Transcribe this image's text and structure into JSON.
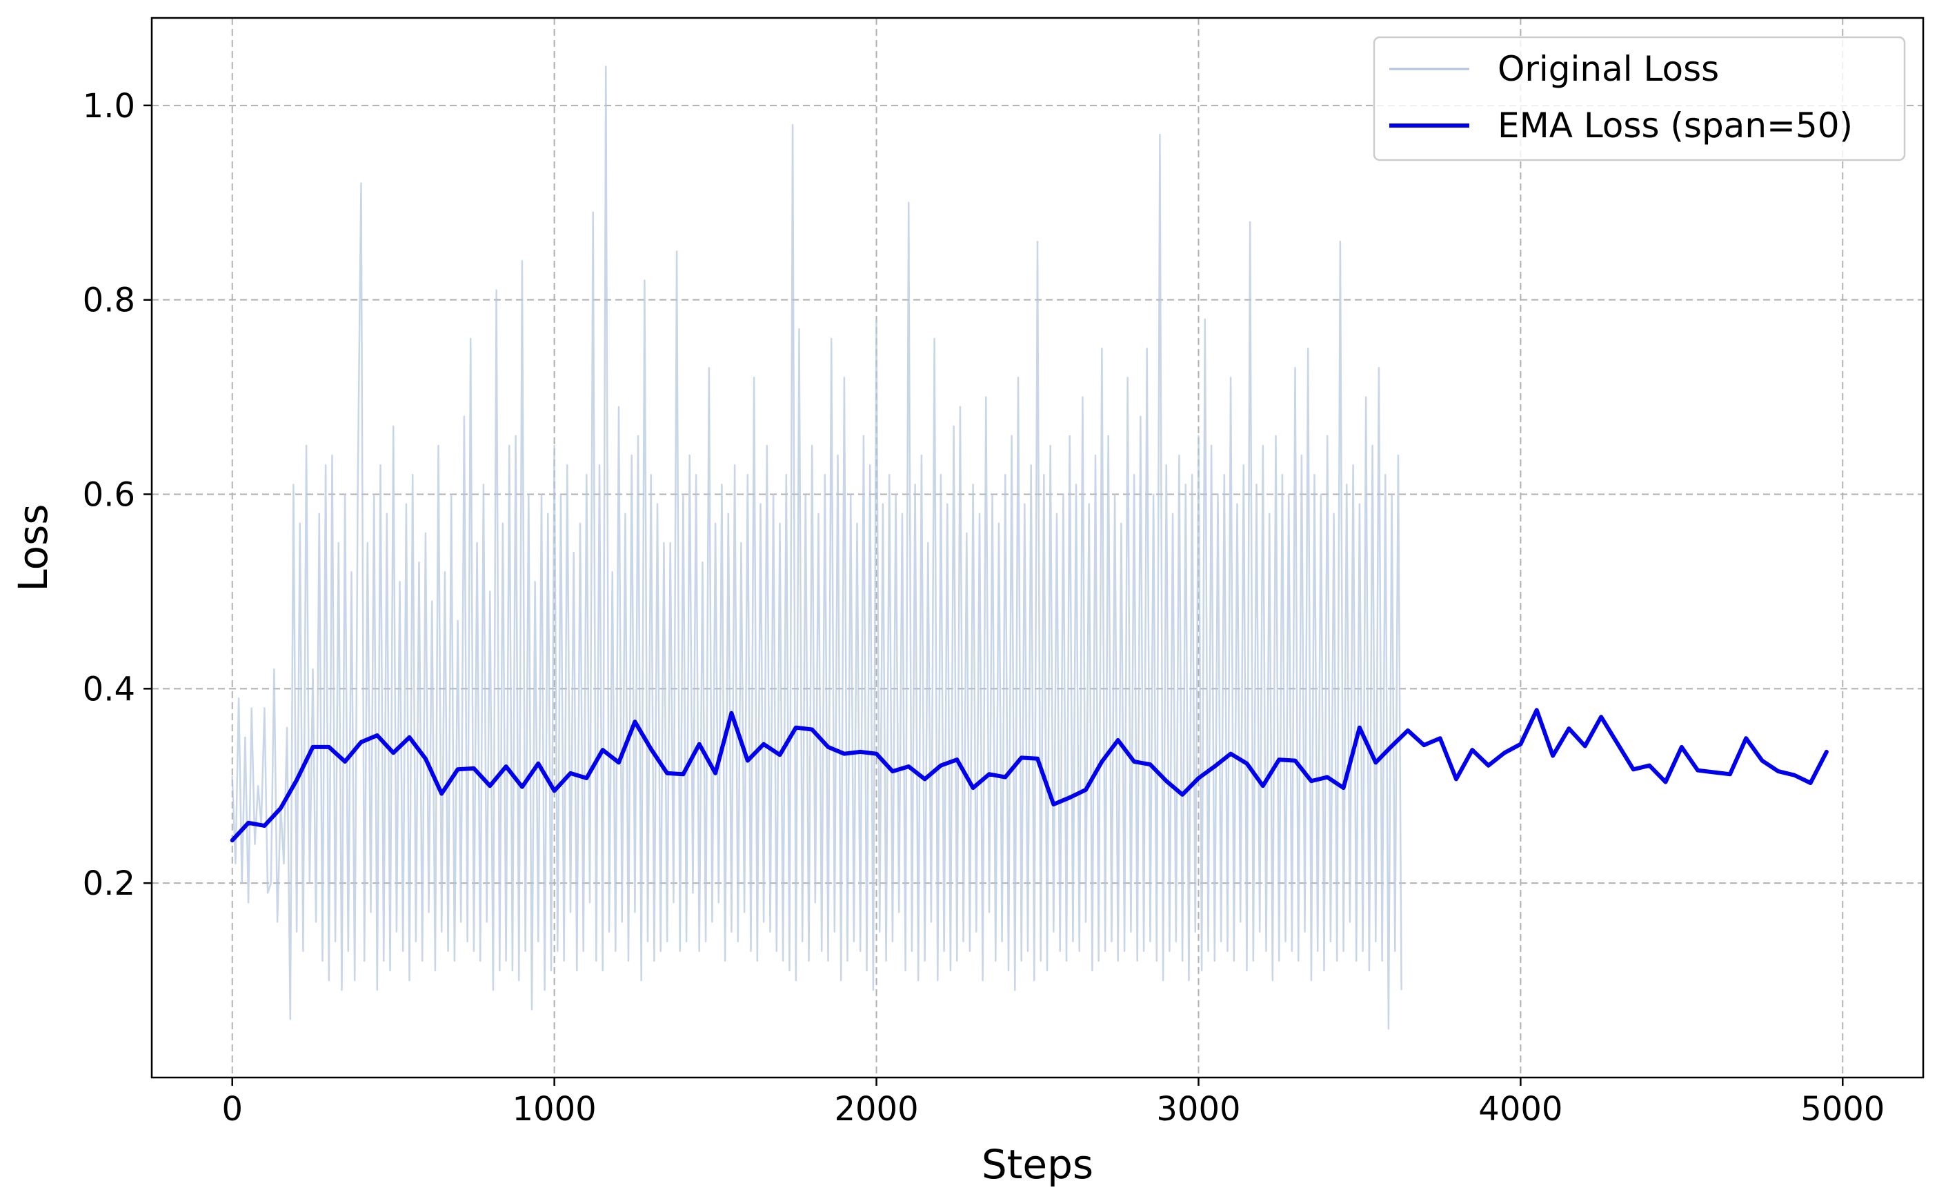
{
  "chart_data": {
    "type": "line",
    "title": "",
    "xlabel": "Steps",
    "ylabel": "Loss",
    "xlim": [
      -250,
      5250
    ],
    "ylim": [
      0.0,
      1.09
    ],
    "x_ticks": [
      0,
      1000,
      2000,
      3000,
      4000,
      5000
    ],
    "x_tick_labels": [
      "0",
      "1000",
      "2000",
      "3000",
      "4000",
      "5000"
    ],
    "y_ticks": [
      0.2,
      0.4,
      0.6,
      0.8,
      1.0
    ],
    "y_tick_labels": [
      "0.2",
      "0.4",
      "0.6",
      "0.8",
      "1.0"
    ],
    "grid": true,
    "legend_position": "top-right",
    "series": [
      {
        "name": "Original Loss",
        "color": "#b0c4de",
        "style": "thin-line",
        "x_start": 0,
        "x_step": 10,
        "values": [
          0.31,
          0.22,
          0.39,
          0.2,
          0.35,
          0.18,
          0.38,
          0.24,
          0.3,
          0.26,
          0.38,
          0.19,
          0.2,
          0.42,
          0.16,
          0.28,
          0.22,
          0.36,
          0.06,
          0.61,
          0.15,
          0.57,
          0.13,
          0.65,
          0.2,
          0.42,
          0.16,
          0.58,
          0.12,
          0.63,
          0.1,
          0.64,
          0.14,
          0.55,
          0.09,
          0.6,
          0.13,
          0.52,
          0.1,
          0.62,
          0.92,
          0.12,
          0.55,
          0.17,
          0.6,
          0.09,
          0.63,
          0.12,
          0.58,
          0.11,
          0.67,
          0.15,
          0.51,
          0.13,
          0.59,
          0.1,
          0.62,
          0.14,
          0.53,
          0.12,
          0.56,
          0.17,
          0.49,
          0.11,
          0.65,
          0.15,
          0.52,
          0.13,
          0.6,
          0.12,
          0.47,
          0.16,
          0.68,
          0.14,
          0.76,
          0.13,
          0.55,
          0.12,
          0.61,
          0.16,
          0.5,
          0.09,
          0.81,
          0.11,
          0.57,
          0.12,
          0.65,
          0.11,
          0.66,
          0.1,
          0.84,
          0.13,
          0.6,
          0.07,
          0.51,
          0.14,
          0.6,
          0.09,
          0.58,
          0.11,
          0.65,
          0.13,
          0.6,
          0.12,
          0.63,
          0.17,
          0.54,
          0.11,
          0.57,
          0.13,
          0.62,
          0.18,
          0.89,
          0.12,
          0.63,
          0.11,
          1.04,
          0.15,
          0.52,
          0.13,
          0.69,
          0.16,
          0.58,
          0.12,
          0.64,
          0.17,
          0.66,
          0.1,
          0.82,
          0.14,
          0.62,
          0.12,
          0.59,
          0.13,
          0.55,
          0.14,
          0.55,
          0.18,
          0.85,
          0.13,
          0.6,
          0.14,
          0.64,
          0.19,
          0.62,
          0.13,
          0.53,
          0.14,
          0.73,
          0.16,
          0.57,
          0.18,
          0.61,
          0.12,
          0.58,
          0.15,
          0.63,
          0.14,
          0.55,
          0.17,
          0.62,
          0.13,
          0.72,
          0.12,
          0.59,
          0.16,
          0.65,
          0.15,
          0.6,
          0.13,
          0.57,
          0.12,
          0.62,
          0.11,
          0.98,
          0.1,
          0.77,
          0.14,
          0.6,
          0.12,
          0.65,
          0.18,
          0.58,
          0.13,
          0.62,
          0.12,
          0.76,
          0.15,
          0.64,
          0.1,
          0.72,
          0.12,
          0.6,
          0.14,
          0.57,
          0.13,
          0.66,
          0.11,
          0.63,
          0.09,
          0.78,
          0.15,
          0.59,
          0.12,
          0.62,
          0.14,
          0.6,
          0.17,
          0.58,
          0.11,
          0.9,
          0.13,
          0.61,
          0.1,
          0.64,
          0.12,
          0.55,
          0.16,
          0.76,
          0.1,
          0.62,
          0.13,
          0.59,
          0.11,
          0.67,
          0.12,
          0.69,
          0.14,
          0.56,
          0.13,
          0.61,
          0.15,
          0.58,
          0.1,
          0.7,
          0.17,
          0.6,
          0.12,
          0.57,
          0.14,
          0.62,
          0.11,
          0.66,
          0.09,
          0.72,
          0.12,
          0.59,
          0.13,
          0.63,
          0.1,
          0.86,
          0.12,
          0.62,
          0.11,
          0.65,
          0.15,
          0.58,
          0.13,
          0.6,
          0.12,
          0.66,
          0.14,
          0.61,
          0.13,
          0.7,
          0.16,
          0.59,
          0.11,
          0.64,
          0.12,
          0.75,
          0.13,
          0.66,
          0.14,
          0.6,
          0.12,
          0.57,
          0.13,
          0.72,
          0.15,
          0.62,
          0.12,
          0.68,
          0.13,
          0.75,
          0.14,
          0.6,
          0.12,
          0.97,
          0.1,
          0.63,
          0.13,
          0.58,
          0.14,
          0.64,
          0.12,
          0.61,
          0.1,
          0.62,
          0.15,
          0.66,
          0.11,
          0.78,
          0.13,
          0.65,
          0.12,
          0.6,
          0.14,
          0.62,
          0.13,
          0.72,
          0.12,
          0.59,
          0.16,
          0.63,
          0.11,
          0.88,
          0.12,
          0.61,
          0.15,
          0.65,
          0.13,
          0.58,
          0.1,
          0.66,
          0.12,
          0.62,
          0.14,
          0.6,
          0.13,
          0.73,
          0.12,
          0.64,
          0.15,
          0.75,
          0.1,
          0.62,
          0.13,
          0.6,
          0.11,
          0.66,
          0.14,
          0.58,
          0.12,
          0.86,
          0.13,
          0.61,
          0.16,
          0.63,
          0.12,
          0.59,
          0.13,
          0.7,
          0.11,
          0.65,
          0.14,
          0.73,
          0.12,
          0.62,
          0.05,
          0.6,
          0.13,
          0.64,
          0.09
        ]
      },
      {
        "name": "EMA Loss (span=50)",
        "color": "#0000ee",
        "style": "thick-line",
        "x": [
          0,
          50,
          100,
          150,
          200,
          250,
          300,
          350,
          400,
          450,
          500,
          550,
          600,
          650,
          700,
          750,
          800,
          850,
          900,
          950,
          1000,
          1050,
          1100,
          1150,
          1200,
          1250,
          1300,
          1350,
          1400,
          1450,
          1500,
          1550,
          1600,
          1650,
          1700,
          1750,
          1800,
          1850,
          1900,
          1950,
          2000,
          2050,
          2100,
          2150,
          2200,
          2250,
          2300,
          2350,
          2400,
          2450,
          2500,
          2550,
          2600,
          2650,
          2700,
          2750,
          2800,
          2850,
          2900,
          2950,
          3000,
          3050,
          3100,
          3150,
          3200,
          3250,
          3300,
          3350,
          3400,
          3450,
          3500,
          3550,
          3600,
          3650,
          3700,
          3750,
          3800,
          3850,
          3900,
          3950,
          4000,
          4050,
          4100,
          4150,
          4200,
          4250,
          4300,
          4350,
          4400,
          4450,
          4500,
          4550,
          4600,
          4650,
          4700,
          4750,
          4800,
          4850,
          4900,
          4950
        ],
        "values": [
          0.244,
          0.262,
          0.259,
          0.277,
          0.306,
          0.34,
          0.34,
          0.325,
          0.345,
          0.352,
          0.334,
          0.35,
          0.328,
          0.292,
          0.317,
          0.318,
          0.3,
          0.32,
          0.299,
          0.323,
          0.295,
          0.313,
          0.308,
          0.337,
          0.324,
          0.366,
          0.338,
          0.313,
          0.312,
          0.343,
          0.313,
          0.375,
          0.326,
          0.343,
          0.332,
          0.36,
          0.358,
          0.34,
          0.333,
          0.335,
          0.333,
          0.315,
          0.32,
          0.307,
          0.321,
          0.327,
          0.298,
          0.312,
          0.309,
          0.329,
          0.328,
          0.281,
          0.288,
          0.296,
          0.325,
          0.347,
          0.325,
          0.322,
          0.305,
          0.291,
          0.308,
          0.32,
          0.333,
          0.323,
          0.3,
          0.327,
          0.326,
          0.305,
          0.309,
          0.298,
          0.36,
          0.324,
          0.341,
          0.357,
          0.342,
          0.349,
          0.307,
          0.337,
          0.321,
          0.334,
          0.343,
          0.378,
          0.331,
          0.359,
          0.341,
          0.371,
          0.344,
          0.317,
          0.321,
          0.304,
          0.34,
          0.316,
          0.314,
          0.312,
          0.349,
          0.326,
          0.315,
          0.311,
          0.303,
          0.335
        ]
      }
    ]
  }
}
